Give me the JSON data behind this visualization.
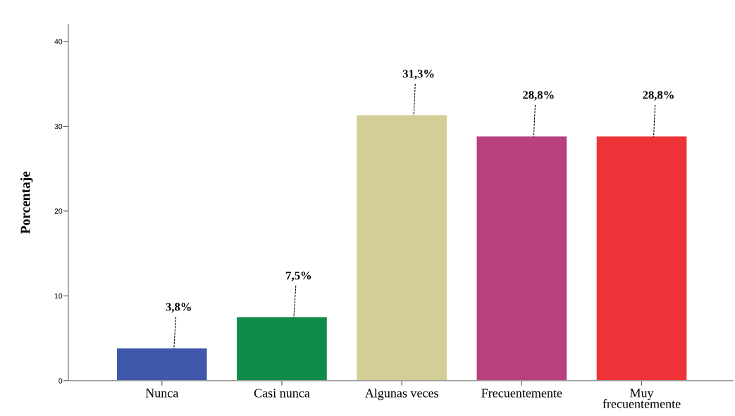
{
  "chart_data": {
    "type": "bar",
    "ylabel": "Porcentaje",
    "categories": [
      "Nunca",
      "Casi nunca",
      "Algunas veces",
      "Frecuentemente",
      "Muy frecuentemente"
    ],
    "values": [
      3.8,
      7.5,
      31.3,
      28.8,
      28.8
    ],
    "colors": [
      "#3f58ac",
      "#108c48",
      "#d3cd96",
      "#b8407c",
      "#ee3338"
    ],
    "value_labels": [
      "3,8%",
      "7,5%",
      "31,3%",
      "28,8%",
      "28,8%"
    ],
    "ylim": [
      0,
      42
    ],
    "yticks": [
      0,
      10,
      20,
      30,
      40
    ],
    "grid": false
  }
}
